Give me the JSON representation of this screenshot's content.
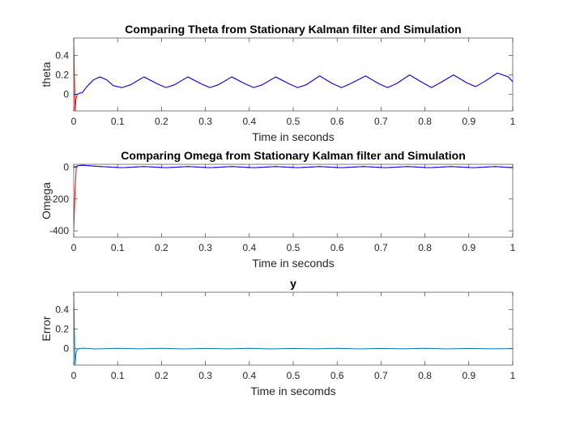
{
  "chart_data": [
    {
      "type": "line",
      "title": "Comparing Theta from Stationary Kalman filter and Simulation",
      "xlabel": "Time in seconds",
      "ylabel": "theta",
      "xlim": [
        0,
        1
      ],
      "ylim": [
        -0.17,
        0.58
      ],
      "xticks": [
        0,
        0.1,
        0.2,
        0.3,
        0.4,
        0.5,
        0.6,
        0.7,
        0.8,
        0.9,
        1
      ],
      "xtick_labels": [
        "0",
        "0.1",
        "0.2",
        "0.3",
        "0.4",
        "0.5",
        "0.6",
        "0.7",
        "0.8",
        "0.9",
        "1"
      ],
      "yticks": [
        0,
        0.2,
        0.4
      ],
      "ytick_labels": [
        "0",
        "0.2",
        "0.4"
      ],
      "grid": false,
      "series": [
        {
          "color": "#ff0000",
          "x": [
            0,
            0.0015,
            0.003,
            0.005,
            0.008,
            0.012,
            0.02,
            0.03,
            0.045,
            0.06,
            0.075,
            0.09,
            0.11,
            0.13,
            0.16,
            0.19,
            0.21,
            0.23,
            0.26,
            0.29,
            0.31,
            0.33,
            0.36,
            0.39,
            0.41,
            0.43,
            0.46,
            0.49,
            0.51,
            0.53,
            0.56,
            0.59,
            0.61,
            0.63,
            0.665,
            0.695,
            0.715,
            0.735,
            0.765,
            0.795,
            0.815,
            0.835,
            0.865,
            0.895,
            0.915,
            0.935,
            0.965,
            0.99,
            1
          ],
          "y": [
            0.58,
            0.2,
            -0.17,
            -0.05,
            0.0,
            0.01,
            0.02,
            0.08,
            0.15,
            0.18,
            0.15,
            0.09,
            0.07,
            0.1,
            0.18,
            0.11,
            0.07,
            0.1,
            0.18,
            0.11,
            0.07,
            0.1,
            0.18,
            0.11,
            0.07,
            0.1,
            0.18,
            0.11,
            0.07,
            0.1,
            0.19,
            0.11,
            0.07,
            0.11,
            0.19,
            0.11,
            0.07,
            0.11,
            0.2,
            0.12,
            0.07,
            0.12,
            0.2,
            0.12,
            0.08,
            0.13,
            0.22,
            0.18,
            0.13
          ]
        },
        {
          "color": "#0000ff",
          "x": [
            0,
            0.005,
            0.008,
            0.012,
            0.02,
            0.03,
            0.045,
            0.06,
            0.075,
            0.09,
            0.11,
            0.13,
            0.16,
            0.19,
            0.21,
            0.23,
            0.26,
            0.29,
            0.31,
            0.33,
            0.36,
            0.39,
            0.41,
            0.43,
            0.46,
            0.49,
            0.51,
            0.53,
            0.56,
            0.59,
            0.61,
            0.63,
            0.665,
            0.695,
            0.715,
            0.735,
            0.765,
            0.795,
            0.815,
            0.835,
            0.865,
            0.895,
            0.915,
            0.935,
            0.965,
            0.99,
            1
          ],
          "y": [
            0.0,
            0.0,
            0.0,
            0.01,
            0.02,
            0.08,
            0.15,
            0.18,
            0.15,
            0.09,
            0.07,
            0.1,
            0.18,
            0.11,
            0.07,
            0.1,
            0.18,
            0.11,
            0.07,
            0.1,
            0.18,
            0.11,
            0.07,
            0.1,
            0.18,
            0.11,
            0.07,
            0.1,
            0.19,
            0.11,
            0.07,
            0.11,
            0.19,
            0.11,
            0.07,
            0.11,
            0.2,
            0.12,
            0.07,
            0.12,
            0.2,
            0.12,
            0.08,
            0.13,
            0.22,
            0.18,
            0.13
          ]
        }
      ]
    },
    {
      "type": "line",
      "title": "Comparing Omega from Stationary Kalman filter and Simulation",
      "xlabel": "Time in seconds",
      "ylabel": "Omega",
      "xlim": [
        0,
        1
      ],
      "ylim": [
        -440,
        18
      ],
      "xticks": [
        0,
        0.1,
        0.2,
        0.3,
        0.4,
        0.5,
        0.6,
        0.7,
        0.8,
        0.9,
        1
      ],
      "xtick_labels": [
        "0",
        "0.1",
        "0.2",
        "0.3",
        "0.4",
        "0.5",
        "0.6",
        "0.7",
        "0.8",
        "0.9",
        "1"
      ],
      "yticks": [
        -400,
        -200,
        0
      ],
      "ytick_labels": [
        "-400",
        "-200",
        "0"
      ],
      "grid": false,
      "series": [
        {
          "color": "#ff0000",
          "x": [
            0,
            0.003,
            0.006,
            0.01,
            0.02,
            0.06,
            0.11,
            0.16,
            0.21,
            0.26,
            0.31,
            0.36,
            0.41,
            0.46,
            0.51,
            0.56,
            0.61,
            0.66,
            0.71,
            0.76,
            0.81,
            0.86,
            0.91,
            0.96,
            1
          ],
          "y": [
            -400,
            -150,
            5,
            10,
            12,
            4,
            -3,
            4,
            -3,
            4,
            -3,
            4,
            -3,
            4,
            -3,
            4,
            -3,
            4,
            -3,
            4,
            -3,
            4,
            -3,
            4,
            -3
          ]
        },
        {
          "color": "#0000ff",
          "x": [
            0,
            0.006,
            0.01,
            0.02,
            0.06,
            0.11,
            0.16,
            0.21,
            0.26,
            0.31,
            0.36,
            0.41,
            0.46,
            0.51,
            0.56,
            0.61,
            0.66,
            0.71,
            0.76,
            0.81,
            0.86,
            0.91,
            0.96,
            1
          ],
          "y": [
            0,
            5,
            10,
            12,
            4,
            -3,
            4,
            -3,
            4,
            -3,
            4,
            -3,
            4,
            -3,
            4,
            -3,
            4,
            -3,
            4,
            -3,
            4,
            -3,
            4,
            -3
          ]
        }
      ]
    },
    {
      "type": "line",
      "title": "y",
      "xlabel": "Time in secomds",
      "ylabel": "Error",
      "xlim": [
        0,
        1
      ],
      "ylim": [
        -0.17,
        0.58
      ],
      "xticks": [
        0,
        0.1,
        0.2,
        0.3,
        0.4,
        0.5,
        0.6,
        0.7,
        0.8,
        0.9,
        1
      ],
      "xtick_labels": [
        "0",
        "0.1",
        "0.2",
        "0.3",
        "0.4",
        "0.5",
        "0.6",
        "0.7",
        "0.8",
        "0.9",
        "1"
      ],
      "yticks": [
        0,
        0.2,
        0.4
      ],
      "ytick_labels": [
        "0",
        "0.2",
        "0.4"
      ],
      "grid": false,
      "series": [
        {
          "color": "#0072bd",
          "x": [
            0,
            0.0015,
            0.003,
            0.005,
            0.008,
            0.012,
            0.02,
            0.05,
            0.1,
            0.15,
            0.2,
            0.25,
            0.3,
            0.35,
            0.4,
            0.45,
            0.5,
            0.55,
            0.6,
            0.65,
            0.7,
            0.75,
            0.8,
            0.85,
            0.9,
            0.95,
            1
          ],
          "y": [
            0.58,
            0.2,
            -0.17,
            -0.05,
            -0.01,
            0.0,
            0.004,
            -0.003,
            0.003,
            -0.002,
            0.003,
            -0.003,
            0.002,
            -0.002,
            0.003,
            -0.003,
            0.002,
            -0.002,
            0.003,
            -0.003,
            0.002,
            -0.002,
            0.003,
            -0.003,
            0.002,
            -0.002,
            0.0
          ]
        }
      ]
    }
  ]
}
